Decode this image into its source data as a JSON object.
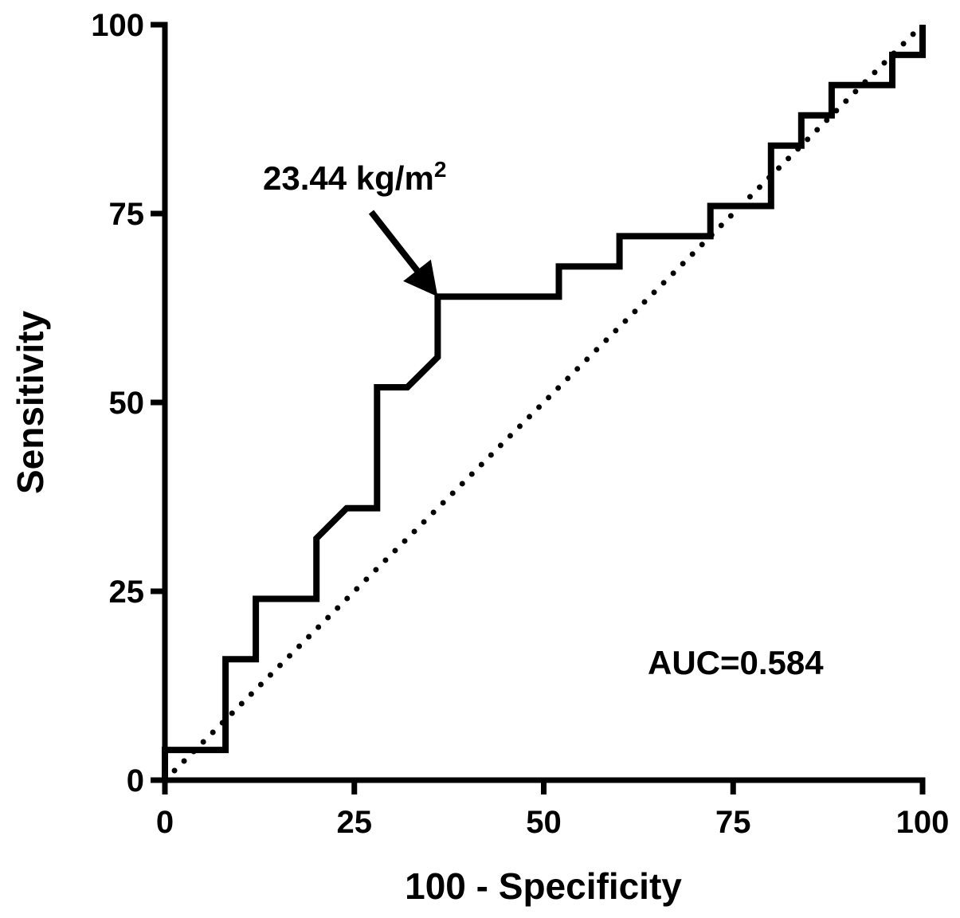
{
  "chart_data": {
    "type": "line",
    "xlabel": "100 - Specificity",
    "ylabel": "Sensitivity",
    "xlim": [
      0,
      100
    ],
    "ylim": [
      0,
      100
    ],
    "x_ticks": [
      0,
      25,
      50,
      75,
      100
    ],
    "y_ticks": [
      0,
      25,
      50,
      75,
      100
    ],
    "grid": false,
    "series": [
      {
        "style": "solid-step",
        "points": [
          [
            0,
            0
          ],
          [
            0,
            4
          ],
          [
            8,
            4
          ],
          [
            8,
            16
          ],
          [
            12,
            16
          ],
          [
            12,
            24
          ],
          [
            20,
            24
          ],
          [
            20,
            32
          ],
          [
            24,
            36
          ],
          [
            28,
            36
          ],
          [
            28,
            52
          ],
          [
            32,
            52
          ],
          [
            36,
            56
          ],
          [
            36,
            64
          ],
          [
            52,
            64
          ],
          [
            52,
            68
          ],
          [
            60,
            68
          ],
          [
            60,
            72
          ],
          [
            72,
            72
          ],
          [
            72,
            76
          ],
          [
            80,
            76
          ],
          [
            80,
            84
          ],
          [
            84,
            84
          ],
          [
            84,
            88
          ],
          [
            88,
            88
          ],
          [
            88,
            92
          ],
          [
            96,
            92
          ],
          [
            96,
            96
          ],
          [
            100,
            96
          ],
          [
            100,
            100
          ]
        ]
      },
      {
        "style": "dotted-reference",
        "points": [
          [
            0,
            0
          ],
          [
            100,
            100
          ]
        ]
      }
    ],
    "annotations": [
      {
        "text": "23.44 kg/m",
        "superscript": "2",
        "point": [
          36,
          64
        ]
      },
      {
        "text": "AUC=0.584"
      }
    ]
  }
}
